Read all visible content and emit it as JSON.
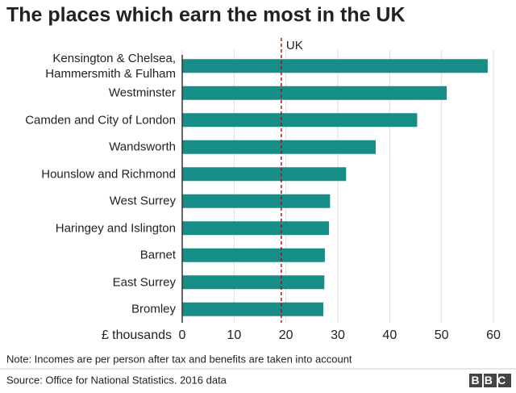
{
  "chart_data": {
    "type": "bar",
    "orientation": "horizontal",
    "title": "The places which earn the most in the UK",
    "categories": [
      "Kensington & Chelsea,\nHammersmith & Fulham",
      "Westminster",
      "Camden and City of London",
      "Wandsworth",
      "Hounslow and Richmond",
      "West Surrey",
      "Haringey and Islington",
      "Barnet",
      "East Surrey",
      "Bromley"
    ],
    "values": [
      58.9,
      51.0,
      45.3,
      37.3,
      31.6,
      28.5,
      28.3,
      27.5,
      27.4,
      27.2
    ],
    "color": "#168e87",
    "xlabel": "£ thousands",
    "xlim": [
      0,
      60
    ],
    "xticks": [
      0,
      10,
      20,
      30,
      40,
      50,
      60
    ],
    "grid": true,
    "reference_line": {
      "label": "UK",
      "value": 19.1,
      "color": "#a0141e"
    },
    "note": "Note: Incomes are per person after tax and benefits are taken into account",
    "source": "Source: Office for National Statistics. 2016 data",
    "logo": "BBC"
  }
}
